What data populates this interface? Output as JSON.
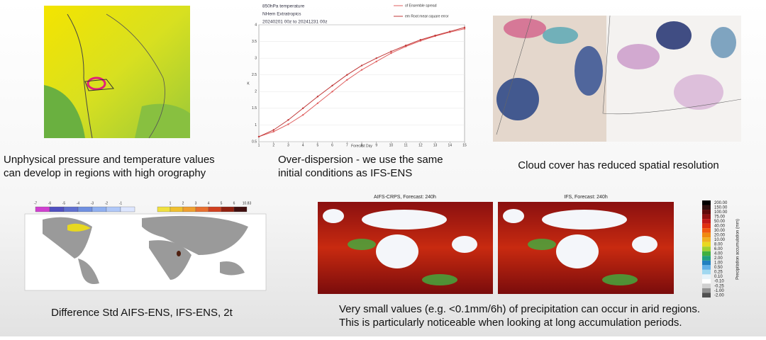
{
  "orography": {
    "caption": [
      "Unphysical pressure and temperature values",
      "can develop in regions with high orography"
    ]
  },
  "dispersion": {
    "caption": [
      "Over-dispersion - we use the same",
      "initial conditions as IFS-ENS"
    ]
  },
  "cloud": {
    "caption": "Cloud cover has reduced spatial resolution"
  },
  "chart_data": {
    "type": "line",
    "title": "850hPa temperature",
    "subtitle": "NHem Extratropics",
    "period": "20240201 00z to 20241231 00z",
    "xlabel": "Forecast Day",
    "ylabel": "K",
    "x": [
      1,
      2,
      3,
      4,
      5,
      6,
      7,
      8,
      9,
      10,
      11,
      12,
      13,
      14,
      15
    ],
    "xlim": [
      1,
      15
    ],
    "ylim": [
      0.5,
      4
    ],
    "xticks": [
      1,
      2,
      3,
      4,
      5,
      6,
      7,
      8,
      9,
      10,
      11,
      12,
      13,
      14,
      15
    ],
    "yticks": [
      0.5,
      1,
      1.5,
      2,
      2.5,
      3,
      3.5,
      4
    ],
    "series": [
      {
        "name": "of Ensemble spread",
        "color": "#e06060",
        "values": [
          0.65,
          0.8,
          1.02,
          1.3,
          1.65,
          2.0,
          2.35,
          2.65,
          2.9,
          3.15,
          3.35,
          3.52,
          3.66,
          3.78,
          3.88
        ]
      },
      {
        "name": "em Root mean square error",
        "color": "#c03838",
        "values": [
          0.65,
          0.85,
          1.15,
          1.5,
          1.85,
          2.18,
          2.5,
          2.78,
          3.0,
          3.2,
          3.38,
          3.55,
          3.68,
          3.8,
          3.92
        ]
      }
    ]
  },
  "std_map": {
    "caption": "Difference Std AIFS-ENS, IFS-ENS, 2t",
    "negative_labels": [
      -7,
      -6,
      -5,
      -4,
      -3,
      -2,
      -1
    ],
    "positive_labels": [
      1,
      2,
      3,
      4,
      5,
      6,
      10.83
    ]
  },
  "precip": {
    "titles": [
      "AIFS-CRPS, Forecast: 240h",
      "IFS, Forecast: 240h"
    ],
    "colorbar_title": "Precipitation accumulation (mm)",
    "colorbar_labels": [
      "200.00",
      "150.00",
      "100.00",
      "75.00",
      "50.00",
      "40.00",
      "30.00",
      "20.00",
      "10.00",
      "8.00",
      "6.00",
      "4.00",
      "2.00",
      "1.00",
      "0.50",
      "0.25",
      "0.10",
      "-0.10",
      "-0.25",
      "-1.00",
      "-2.00"
    ],
    "caption": [
      "Very small values (e.g. <0.1mm/6h) of precipitation can occur in arid regions.",
      "This is particularly noticeable when looking at long accumulation periods."
    ]
  }
}
